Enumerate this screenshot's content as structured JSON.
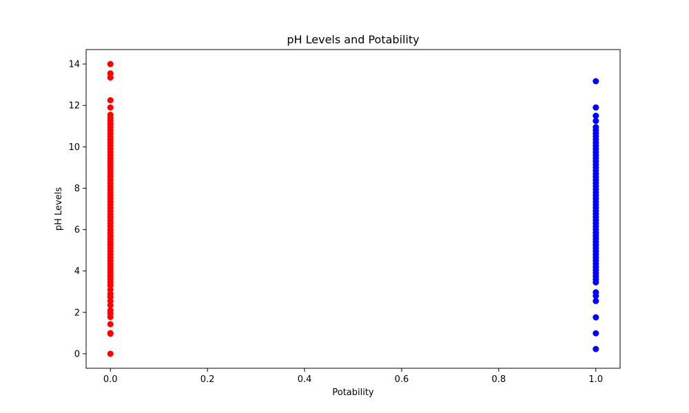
{
  "chart_data": {
    "type": "scatter",
    "title": "pH Levels and Potability",
    "xlabel": "Potability",
    "ylabel": "pH Levels",
    "xlim": [
      -0.05,
      1.05
    ],
    "ylim": [
      -0.7,
      14.7
    ],
    "xticks": [
      0.0,
      0.2,
      0.4,
      0.6,
      0.8,
      1.0
    ],
    "xtick_labels": [
      "0.0",
      "0.2",
      "0.4",
      "0.6",
      "0.8",
      "1.0"
    ],
    "yticks": [
      0,
      2,
      4,
      6,
      8,
      10,
      12,
      14
    ],
    "ytick_labels": [
      "0",
      "2",
      "4",
      "6",
      "8",
      "10",
      "12",
      "14"
    ],
    "grid": false,
    "series": [
      {
        "x": 0,
        "color": "#ff0000",
        "y": [
          0.0,
          0.97,
          1.0,
          1.43,
          1.78,
          1.95,
          2.1,
          2.35,
          2.55,
          2.75,
          2.9,
          3.1,
          3.3,
          3.45,
          3.6,
          3.75,
          3.9,
          4.05,
          4.2,
          4.35,
          4.5,
          4.65,
          4.8,
          4.95,
          5.1,
          5.25,
          5.4,
          5.55,
          5.7,
          5.85,
          6.0,
          6.15,
          6.3,
          6.45,
          6.6,
          6.75,
          6.9,
          7.05,
          7.2,
          7.35,
          7.5,
          7.65,
          7.8,
          7.95,
          8.1,
          8.25,
          8.4,
          8.55,
          8.7,
          8.85,
          9.0,
          9.15,
          9.3,
          9.45,
          9.6,
          9.75,
          9.9,
          10.05,
          10.2,
          10.35,
          10.5,
          10.65,
          10.8,
          10.95,
          11.1,
          11.25,
          11.4,
          11.55,
          11.9,
          12.25,
          13.35,
          13.55,
          14.0
        ]
      },
      {
        "x": 1,
        "color": "#0000ff",
        "y": [
          0.23,
          0.99,
          1.76,
          2.55,
          2.8,
          2.97,
          3.45,
          3.6,
          3.75,
          3.9,
          4.05,
          4.2,
          4.35,
          4.5,
          4.65,
          4.8,
          4.95,
          5.1,
          5.25,
          5.4,
          5.55,
          5.7,
          5.85,
          6.0,
          6.15,
          6.3,
          6.45,
          6.6,
          6.75,
          6.9,
          7.05,
          7.2,
          7.35,
          7.5,
          7.65,
          7.8,
          7.95,
          8.1,
          8.25,
          8.4,
          8.55,
          8.7,
          8.85,
          9.0,
          9.15,
          9.3,
          9.45,
          9.6,
          9.75,
          9.9,
          10.05,
          10.2,
          10.35,
          10.5,
          10.65,
          10.8,
          10.95,
          11.25,
          11.5,
          11.9,
          13.17
        ]
      }
    ]
  }
}
